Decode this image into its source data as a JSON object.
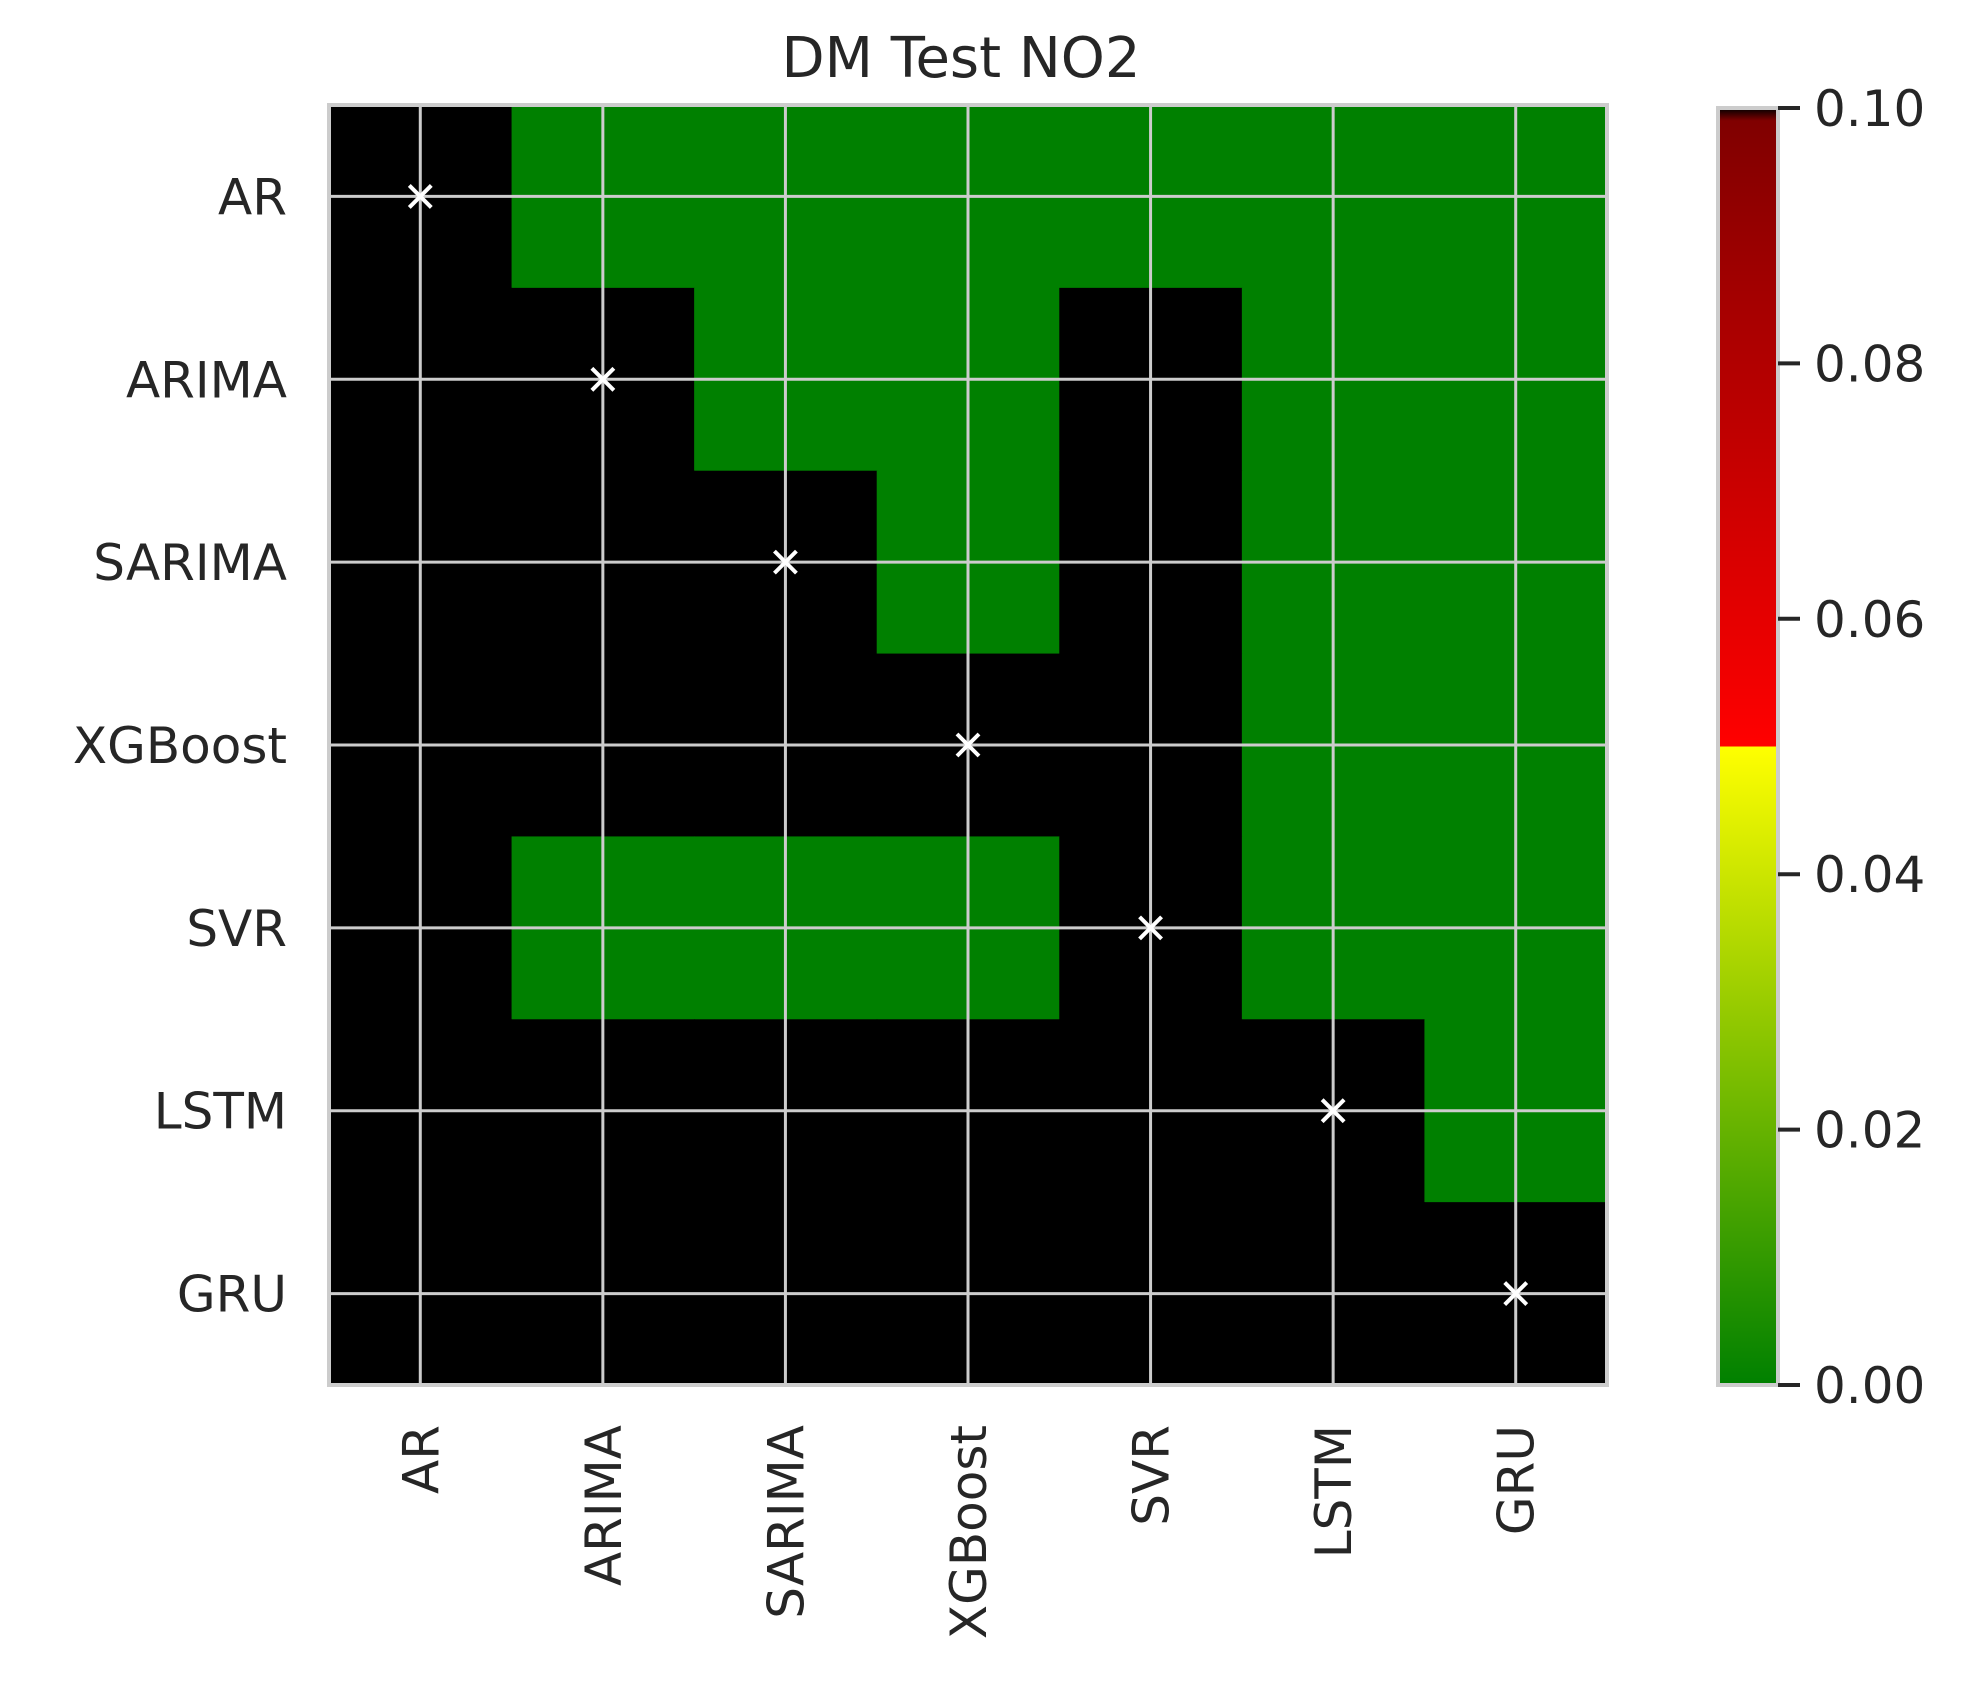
{
  "chart_data": {
    "type": "heatmap",
    "title": "DM Test NO2",
    "rows": [
      "AR",
      "ARIMA",
      "SARIMA",
      "XGBoost",
      "SVR",
      "LSTM",
      "GRU"
    ],
    "columns": [
      "AR",
      "ARIMA",
      "SARIMA",
      "XGBoost",
      "SVR",
      "LSTM",
      "GRU"
    ],
    "values": [
      [
        "masked",
        0,
        0,
        0,
        0,
        0,
        0
      ],
      [
        "masked",
        "masked",
        0,
        0,
        "masked",
        0,
        0
      ],
      [
        "masked",
        "masked",
        "masked",
        0,
        "masked",
        0,
        0
      ],
      [
        "masked",
        "masked",
        "masked",
        "masked",
        "masked",
        0,
        0
      ],
      [
        "masked",
        0,
        0,
        0,
        "masked",
        0,
        0
      ],
      [
        "masked",
        "masked",
        "masked",
        "masked",
        "masked",
        "masked",
        0
      ],
      [
        "masked",
        "masked",
        "masked",
        "masked",
        "masked",
        "masked",
        "masked"
      ]
    ],
    "diagonal_marker": "×",
    "colorbar": {
      "range": [
        0.0,
        0.1
      ],
      "ticks": [
        "0.00",
        "0.02",
        "0.04",
        "0.06",
        "0.08",
        "0.10"
      ],
      "stops": [
        {
          "value": 0.0,
          "color": "#008000"
        },
        {
          "value": 0.05,
          "color": "#ffff00"
        },
        {
          "value": 0.05,
          "color": "#ff0000"
        },
        {
          "value": 0.099,
          "color": "#800000"
        },
        {
          "value": 0.1,
          "color": "#000000"
        }
      ]
    },
    "masked_color": "#000000",
    "grid": true,
    "grid_color": "#cccccc"
  }
}
